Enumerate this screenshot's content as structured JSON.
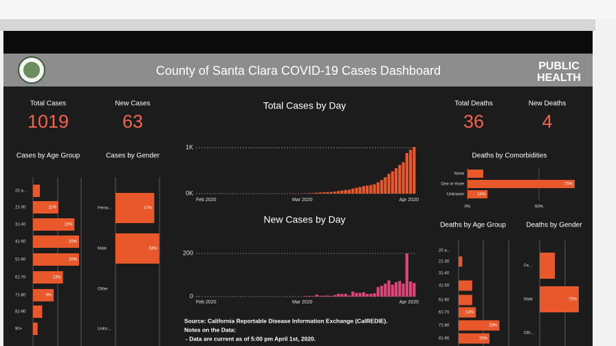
{
  "header": {
    "title": "County of Santa Clara COVID-19 Cases Dashboard",
    "logo": [
      "PUBLIC",
      "HEALTH"
    ]
  },
  "kpis": [
    {
      "label": "Total Cases",
      "value": 1019
    },
    {
      "label": "New Cases",
      "value": 63
    },
    {
      "label": "Total Deaths",
      "value": 36
    },
    {
      "label": "New Deaths",
      "value": 4
    }
  ],
  "chart_data": [
    {
      "type": "bar",
      "title": "Total Cases by Day",
      "color": "#e8582a",
      "grid": true,
      "categories": [
        "Feb 2020",
        null,
        null,
        null,
        null,
        null,
        null,
        null,
        null,
        null,
        null,
        null,
        null,
        null,
        null,
        null,
        null,
        null,
        null,
        null,
        null,
        null,
        null,
        null,
        null,
        null,
        null,
        null,
        null,
        "Mar 2020",
        null,
        null,
        null,
        null,
        null,
        null,
        null,
        null,
        null,
        null,
        null,
        null,
        null,
        null,
        null,
        null,
        null,
        null,
        null,
        null,
        null,
        null,
        null,
        null,
        null,
        null,
        null,
        null,
        null,
        null,
        "Apr 2020"
      ],
      "values": [
        2,
        2,
        2,
        2,
        2,
        2,
        2,
        2,
        2,
        2,
        2,
        2,
        2,
        2,
        2,
        2,
        2,
        2,
        2,
        2,
        2,
        2,
        2,
        2,
        2,
        2,
        3,
        3,
        3,
        3,
        6,
        9,
        11,
        20,
        24,
        28,
        33,
        36,
        43,
        56,
        68,
        81,
        86,
        109,
        126,
        143,
        163,
        175,
        188,
        203,
        247,
        297,
        357,
        432,
        487,
        554,
        626,
        686,
        886,
        956,
        1019
      ],
      "ylim": [
        0,
        1050
      ],
      "yticks": [
        {
          "value": 0,
          "label": "0K"
        },
        {
          "value": 1000,
          "label": "1K"
        }
      ]
    },
    {
      "type": "bar",
      "title": "New Cases by Day",
      "color": "#e0457a",
      "grid": true,
      "categories": [
        "Feb 2020",
        null,
        null,
        null,
        null,
        null,
        null,
        null,
        null,
        null,
        null,
        null,
        null,
        null,
        null,
        null,
        null,
        null,
        null,
        null,
        null,
        null,
        null,
        null,
        null,
        null,
        null,
        null,
        null,
        "Mar 2020",
        null,
        null,
        null,
        null,
        null,
        null,
        null,
        null,
        null,
        null,
        null,
        null,
        null,
        null,
        null,
        null,
        null,
        null,
        null,
        null,
        null,
        null,
        null,
        null,
        null,
        null,
        null,
        null,
        null,
        null,
        "Apr 2020"
      ],
      "values": [
        2,
        0,
        0,
        0,
        0,
        0,
        0,
        0,
        0,
        0,
        0,
        0,
        0,
        0,
        0,
        0,
        0,
        0,
        0,
        0,
        0,
        0,
        0,
        0,
        0,
        0,
        1,
        0,
        0,
        0,
        3,
        3,
        2,
        9,
        4,
        4,
        5,
        3,
        7,
        13,
        12,
        13,
        5,
        23,
        17,
        17,
        20,
        12,
        13,
        15,
        44,
        50,
        60,
        75,
        55,
        67,
        72,
        60,
        200,
        70,
        63
      ],
      "ylim": [
        0,
        210
      ],
      "yticks": [
        0,
        200
      ]
    },
    {
      "type": "hbar",
      "title": "Cases by Age Group",
      "color": "#e8582a",
      "categories": [
        "20 a...",
        "21-30",
        "31-40",
        "41-50",
        "51-60",
        "61-70",
        "71-80",
        "81-90",
        "90+"
      ],
      "values": [
        3,
        11,
        18,
        20,
        20,
        13,
        9,
        4,
        2
      ],
      "value_labels": [
        null,
        "11%",
        "18%",
        "20%",
        "20%",
        "13%",
        "9%",
        null,
        null
      ]
    },
    {
      "type": "hbar",
      "title": "Cases by Gender",
      "color": "#e8582a",
      "categories": [
        "Fema...",
        "Male",
        "Other",
        "Unkn..."
      ],
      "values": [
        47,
        53,
        0,
        0
      ],
      "value_labels": [
        "47%",
        "53%",
        null,
        null
      ]
    },
    {
      "type": "hbar",
      "title": "Deaths by Comorbidities",
      "color": "#e8582a",
      "categories": [
        "None",
        "One or more",
        "Unknown"
      ],
      "values": [
        11,
        75,
        14
      ],
      "value_labels": [
        null,
        "75%",
        "14%"
      ],
      "xticks": [
        {
          "value": 0,
          "label": "0%"
        },
        {
          "value": 50,
          "label": "50%"
        }
      ]
    },
    {
      "type": "hbar",
      "title": "Deaths by Age Group",
      "color": "#e8582a",
      "categories": [
        "20 a...",
        "21-30",
        "31-40",
        "41-50",
        "51-60",
        "61-70",
        "71-80",
        "81-90"
      ],
      "values": [
        0,
        3,
        0,
        11,
        11,
        14,
        33,
        25
      ],
      "value_labels": [
        null,
        null,
        null,
        null,
        null,
        "14%",
        "33%",
        "25%"
      ]
    },
    {
      "type": "hbar",
      "title": "Deaths by Gender",
      "color": "#e8582a",
      "categories": [
        "Fe...",
        "Male",
        "Oth..."
      ],
      "values": [
        28,
        72,
        0
      ],
      "value_labels": [
        null,
        "72%",
        null
      ]
    }
  ],
  "notes": {
    "source": "Source: California Reportable Disease Information Exchange (CalREDIE).",
    "heading": "Notes on the Data:",
    "items": [
      "- Data are current as of 5:00 pm April 1st, 2020."
    ]
  }
}
